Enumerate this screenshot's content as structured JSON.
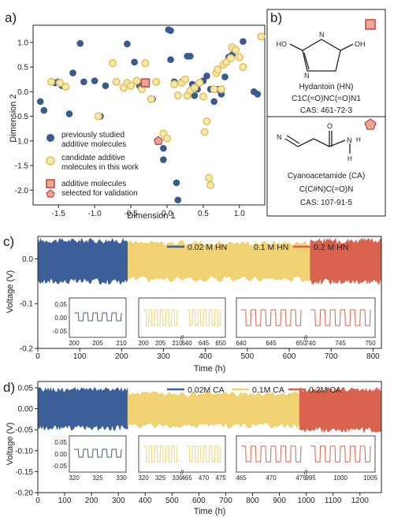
{
  "panel_labels": {
    "a": "a)",
    "b": "b)",
    "c": "c)",
    "d": "d)"
  },
  "colors": {
    "studied": "#3b5a8c",
    "candidate_fill": "#f5e7b1",
    "candidate_edge": "#e3c45a",
    "validation_fill": "#e8a59a",
    "validation_edge": "#c9453b",
    "hn_002": "#3b5f98",
    "hn_01": "#f1d272",
    "hn_02": "#d9624f",
    "molecule_n": "#2b4fbf",
    "molecule_o": "#d4382d"
  },
  "chart_data": [
    {
      "type": "scatter",
      "panel": "a",
      "xlabel": "Dimension 1",
      "ylabel": "Dimension 2",
      "xlim": [
        -1.85,
        1.35
      ],
      "ylim": [
        -2.3,
        1.35
      ],
      "xticks": [
        "-1.5",
        "-1.0",
        "-0.5",
        "0.0",
        "0.5",
        "1.0"
      ],
      "yticks": [
        "1.0",
        "0.5",
        "0.0",
        "-0.5",
        "-1.0",
        "-1.5",
        "-2.0"
      ],
      "legend_position": "bottom-left",
      "series": [
        {
          "name": "previously studied additive molecules",
          "marker": "circle-filled",
          "points": [
            [
              -1.75,
              -0.2
            ],
            [
              -1.7,
              -0.38
            ],
            [
              -1.55,
              0.18
            ],
            [
              -1.5,
              0.2
            ],
            [
              -1.45,
              0.12
            ],
            [
              -1.35,
              -0.45
            ],
            [
              -1.3,
              0.38
            ],
            [
              -1.2,
              0.98
            ],
            [
              -1.15,
              0.2
            ],
            [
              -1.0,
              0.22
            ],
            [
              -0.92,
              -0.5
            ],
            [
              -0.85,
              0.12
            ],
            [
              -0.55,
              0.97
            ],
            [
              -0.45,
              0.6
            ],
            [
              -0.38,
              0.12
            ],
            [
              -0.2,
              -0.15
            ],
            [
              -0.05,
              -1.15
            ],
            [
              -0.05,
              -1.38
            ],
            [
              0.02,
              1.26
            ],
            [
              0.05,
              1.24
            ],
            [
              0.05,
              0.65
            ],
            [
              0.1,
              0.2
            ],
            [
              0.13,
              -1.85
            ],
            [
              0.15,
              -2.2
            ],
            [
              0.2,
              0.2
            ],
            [
              0.28,
              0.72
            ],
            [
              0.32,
              0.72
            ],
            [
              0.35,
              0.15
            ],
            [
              0.38,
              -0.08
            ],
            [
              0.42,
              0.05
            ],
            [
              0.5,
              0.22
            ],
            [
              0.55,
              0.32
            ],
            [
              0.6,
              0.05
            ],
            [
              0.65,
              -0.2
            ],
            [
              0.7,
              0.05
            ],
            [
              0.75,
              -0.05
            ],
            [
              0.8,
              0.3
            ],
            [
              0.85,
              0.7
            ],
            [
              0.9,
              0.75
            ],
            [
              1.05,
              1.02
            ],
            [
              1.2,
              0.0
            ],
            [
              1.25,
              -0.05
            ]
          ]
        },
        {
          "name": "candidate additive molecules in this work",
          "marker": "circle-open",
          "points": [
            [
              -1.6,
              0.2
            ],
            [
              -1.48,
              0.18
            ],
            [
              -1.4,
              0.1
            ],
            [
              -0.95,
              -0.5
            ],
            [
              -0.75,
              0.58
            ],
            [
              -0.7,
              0.2
            ],
            [
              -0.6,
              0.08
            ],
            [
              -0.55,
              0.18
            ],
            [
              -0.5,
              0.12
            ],
            [
              -0.42,
              0.22
            ],
            [
              -0.35,
              0.05
            ],
            [
              -0.3,
              0.58
            ],
            [
              -0.22,
              -0.15
            ],
            [
              -0.15,
              0.2
            ],
            [
              -0.05,
              -0.85
            ],
            [
              0.0,
              -0.95
            ],
            [
              0.1,
              0.15
            ],
            [
              0.15,
              -0.08
            ],
            [
              0.2,
              0.18
            ],
            [
              0.25,
              0.25
            ],
            [
              0.28,
              -0.08
            ],
            [
              0.32,
              0.02
            ],
            [
              0.38,
              0.08
            ],
            [
              0.45,
              0.18
            ],
            [
              0.5,
              -0.1
            ],
            [
              0.52,
              -0.82
            ],
            [
              0.55,
              -0.6
            ],
            [
              0.58,
              -1.75
            ],
            [
              0.6,
              -1.9
            ],
            [
              0.65,
              0.05
            ],
            [
              0.68,
              0.38
            ],
            [
              0.7,
              0.45
            ],
            [
              0.75,
              0.05
            ],
            [
              0.78,
              0.55
            ],
            [
              0.82,
              0.6
            ],
            [
              0.88,
              0.68
            ],
            [
              0.9,
              0.9
            ],
            [
              0.95,
              0.85
            ],
            [
              1.0,
              0.7
            ],
            [
              1.05,
              0.5
            ],
            [
              1.3,
              1.12
            ]
          ]
        },
        {
          "name": "additive molecules selected for validation",
          "marker": "square-pentagon",
          "points": [
            [
              -0.3,
              0.18
            ],
            [
              -0.12,
              -1.0
            ]
          ]
        }
      ],
      "legend": [
        "previously studied",
        "additive molecules",
        "candidate additive",
        "molecules in this work",
        "additive molecules",
        "selected for validation"
      ]
    },
    {
      "type": "area",
      "panel": "c",
      "xlabel": "Time (h)",
      "ylabel": "Voltage (V)",
      "xlim": [
        0,
        820
      ],
      "ylim": [
        -0.2,
        0.05
      ],
      "xticks": [
        "0",
        "100",
        "200",
        "300",
        "400",
        "500",
        "600",
        "700",
        "800"
      ],
      "yticks": [
        "0.0",
        "-0.1",
        "-0.2"
      ],
      "legend_position": "top-right",
      "series": [
        {
          "name": "0.02 M HN",
          "x_range": [
            0,
            215
          ],
          "band": [
            -0.05,
            0.04
          ]
        },
        {
          "name": "0.1 M HN",
          "x_range": [
            215,
            650
          ],
          "band": [
            -0.045,
            0.035
          ]
        },
        {
          "name": "0.2 M HN",
          "x_range": [
            650,
            820
          ],
          "band": [
            -0.05,
            0.04
          ]
        }
      ],
      "insets": [
        {
          "series": "0.02 M HN",
          "xticks": [
            "200",
            "205",
            "210"
          ],
          "yticks": [
            "0.05",
            "0.00",
            "-0.05"
          ]
        },
        {
          "series": "0.1 M HN",
          "xticks": [
            "200",
            "205",
            "210",
            "640",
            "645",
            "650"
          ]
        },
        {
          "series": "0.2 M HN",
          "xticks": [
            "640",
            "645",
            "650",
            "740",
            "745",
            "750"
          ]
        }
      ]
    },
    {
      "type": "area",
      "panel": "d",
      "xlabel": "Time (h)",
      "ylabel": "Voltage (V)",
      "xlim": [
        0,
        1280
      ],
      "ylim": [
        -0.2,
        0.065
      ],
      "xticks": [
        "0",
        "100",
        "200",
        "300",
        "400",
        "500",
        "600",
        "700",
        "800",
        "900",
        "1000",
        "1100",
        "1200"
      ],
      "yticks": [
        "0.05",
        "0.00",
        "-0.05",
        "-0.10",
        "-0.15",
        "-0.20"
      ],
      "legend_position": "top-right",
      "series": [
        {
          "name": "0.02M CA",
          "x_range": [
            0,
            335
          ],
          "band": [
            -0.045,
            0.045
          ]
        },
        {
          "name": "0.1M CA",
          "x_range": [
            335,
            975
          ],
          "band": [
            -0.04,
            0.035
          ]
        },
        {
          "name": "0.2M CA",
          "x_range": [
            975,
            1280
          ],
          "band": [
            -0.05,
            0.045
          ]
        }
      ],
      "insets": [
        {
          "series": "0.02M CA",
          "xticks": [
            "320",
            "325",
            "330"
          ],
          "yticks": [
            "0.05",
            "0.00",
            "-0.05"
          ]
        },
        {
          "series": "0.1M CA",
          "xticks": [
            "320",
            "325",
            "330",
            "465",
            "470",
            "475"
          ]
        },
        {
          "series": "0.2M CA",
          "xticks": [
            "465",
            "470",
            "475",
            "995",
            "1000",
            "1005"
          ]
        }
      ]
    }
  ],
  "molecules": [
    {
      "name": "Hydantoin (HN)",
      "smiles": "C1C(=O)NC(=O)N1",
      "cas": "CAS: 461-72-3",
      "atoms": [
        "HO",
        "OH",
        "N",
        "N"
      ]
    },
    {
      "name": "Cyanoacetamide (CA)",
      "smiles": "C(C#N)C(=O)N",
      "cas": "CAS: 107-91-5",
      "atoms": [
        "N",
        "O",
        "N",
        "H",
        "H"
      ]
    }
  ]
}
